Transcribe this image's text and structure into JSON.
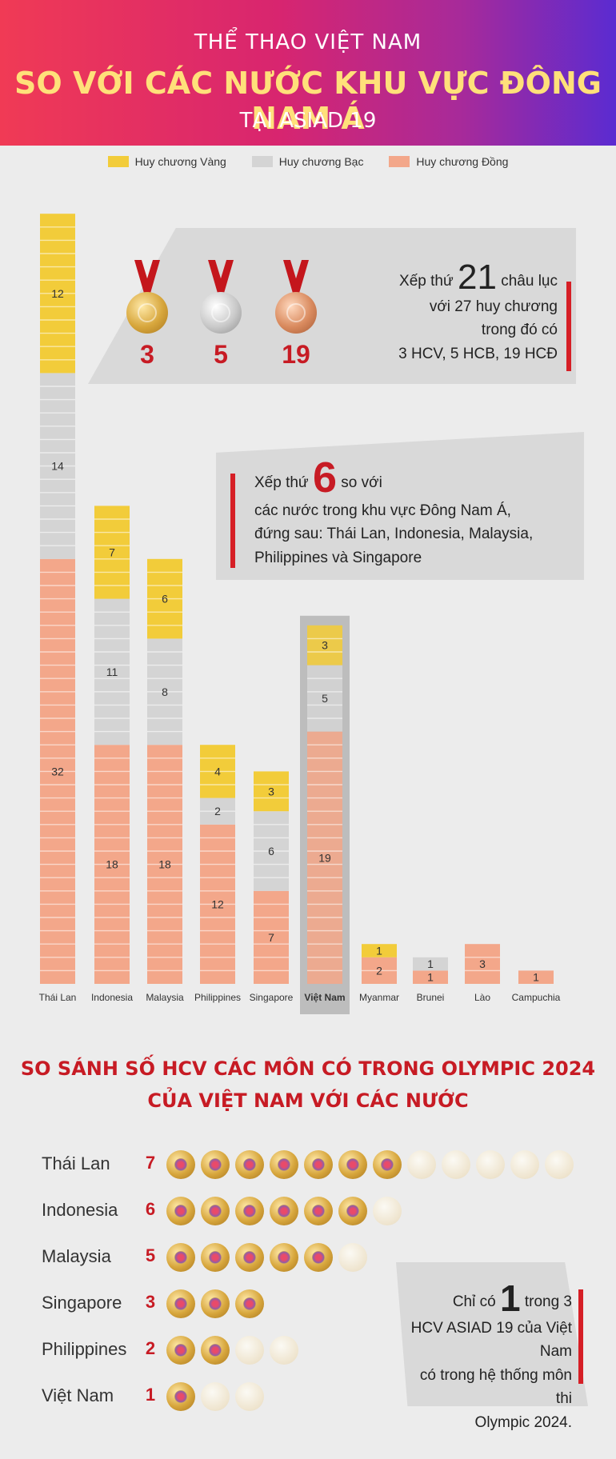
{
  "header": {
    "line1": "THỂ THAO VIỆT NAM",
    "line2": "SO VỚI CÁC NƯỚC KHU VỰC ĐÔNG NAM Á",
    "line3": "TẠI ASIAD 19"
  },
  "colors": {
    "gold": "#f2cc3a",
    "silver": "#d4d4d4",
    "bronze": "#f3a78a",
    "accent": "#c71b24"
  },
  "chart_data": {
    "type": "bar",
    "stacked": true,
    "legend": [
      "Huy chương Vàng",
      "Huy chương Bạc",
      "Huy chương Đồng"
    ],
    "categories": [
      "Thái Lan",
      "Indonesia",
      "Malaysia",
      "Philippines",
      "Singapore",
      "Việt Nam",
      "Myanmar",
      "Brunei",
      "Lào",
      "Campuchia"
    ],
    "highlight": "Việt Nam",
    "series": [
      {
        "name": "Huy chương Vàng",
        "values": [
          12,
          7,
          6,
          4,
          3,
          3,
          1,
          0,
          0,
          0
        ]
      },
      {
        "name": "Huy chương Bạc",
        "values": [
          14,
          11,
          8,
          2,
          6,
          5,
          0,
          1,
          0,
          0
        ]
      },
      {
        "name": "Huy chương Đồng",
        "values": [
          32,
          18,
          18,
          12,
          7,
          19,
          2,
          1,
          3,
          1
        ]
      }
    ],
    "ylim": [
      0,
      58
    ]
  },
  "callout_medals": {
    "gold": "3",
    "silver": "5",
    "bronze": "19",
    "pre": "Xếp thứ",
    "rank": "21",
    "post": "châu lục",
    "line2": "với 27 huy chương",
    "line3": "trong đó có",
    "line4": "3 HCV, 5 HCB, 19 HCĐ"
  },
  "callout_rank": {
    "pre": "Xếp thứ",
    "rank": "6",
    "post": "so với",
    "line2": "các nước trong khu vực Đông Nam Á,",
    "line3": "đứng sau: Thái Lan, Indonesia, Malaysia,",
    "line4": "Philippines và Singapore"
  },
  "section2": {
    "title1": "SO SÁNH SỐ HCV CÁC MÔN CÓ TRONG OLYMPIC 2024",
    "title2": "CỦA VIỆT NAM VỚI CÁC NƯỚC"
  },
  "olympic_gold": {
    "rows": [
      {
        "name": "Thái Lan",
        "value": 7,
        "total": 12
      },
      {
        "name": "Indonesia",
        "value": 6,
        "total": 7
      },
      {
        "name": "Malaysia",
        "value": 5,
        "total": 6
      },
      {
        "name": "Singapore",
        "value": 3,
        "total": 3
      },
      {
        "name": "Philippines",
        "value": 2,
        "total": 4
      },
      {
        "name": "Việt Nam",
        "value": 1,
        "total": 3
      }
    ]
  },
  "callout_vn": {
    "pre": "Chỉ có",
    "num": "1",
    "post": "trong 3",
    "line2": "HCV ASIAD 19 của Việt Nam",
    "line3": "có trong hệ thống môn thi",
    "line4": "Olympic 2024."
  }
}
